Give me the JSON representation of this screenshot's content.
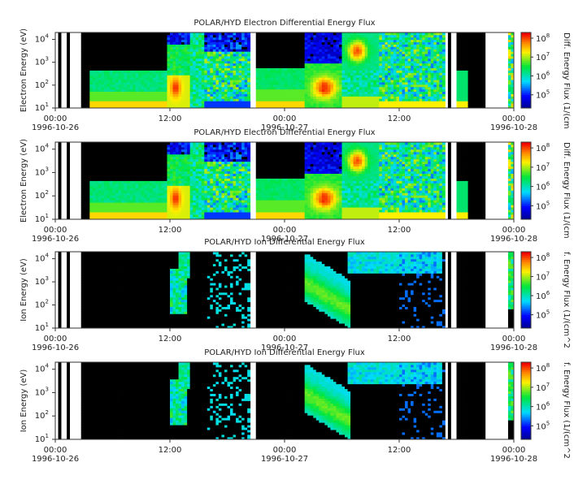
{
  "figure": {
    "panel_titles": [
      "POLAR/HYD  Electron Differential Energy Flux",
      "POLAR/HYD  Electron Differential Energy Flux",
      "POLAR/HYD  Ion Differential Energy Flux",
      "POLAR/HYD  Ion Differential Energy Flux"
    ],
    "ylabels": [
      "Electron Energy (eV)",
      "Electron Energy (eV)",
      "Ion Energy (eV)",
      "Ion Energy (eV)"
    ],
    "colorbar_labels": [
      "Diff. Energy Flux (1/(cm",
      "Diff. Energy Flux (1/(cm",
      "f. Energy Flux (1/(cm^2",
      "f. Energy Flux (1/(cm^2"
    ],
    "x_tick_times": [
      "00:00",
      "12:00",
      "00:00",
      "12:00",
      "00:00"
    ],
    "x_tick_dates": [
      "1996-10-26",
      "",
      "1996-10-27",
      "",
      "1996-10-28"
    ],
    "y_tick_labels": [
      "10",
      "10",
      "10",
      "10",
      "10"
    ],
    "y_tick_exponents": [
      "1",
      "2",
      "3",
      "4",
      ""
    ],
    "colorbar_tick_labels": [
      "10",
      "10",
      "10",
      "10"
    ],
    "colorbar_tick_exponents": [
      "5",
      "6",
      "7",
      "8"
    ]
  },
  "chart_data": [
    {
      "type": "heatmap",
      "title": "POLAR/HYD  Electron Differential Energy Flux",
      "ylabel": "Electron Energy (eV)",
      "colorbar_label": "Diff. Energy Flux (1/(cm",
      "x_range": [
        "1996-10-26T00:00",
        "1996-10-28T00:00"
      ],
      "y_range_eV": [
        10,
        20000
      ],
      "y_scale": "log",
      "color_range": [
        20000,
        200000000
      ],
      "color_scale": "log",
      "colormap": "rainbow (blue-green-yellow-red)",
      "data_gaps_hours": [
        [
          0.0,
          0.2
        ],
        [
          0.75,
          1.25
        ],
        [
          1.55,
          1.75
        ],
        [
          1.85,
          2.75
        ],
        [
          3.45,
          3.7
        ],
        [
          20.5,
          21.1
        ],
        [
          40.95,
          41.0
        ],
        [
          41.35,
          42.0
        ],
        [
          43.1,
          43.3
        ],
        [
          45.0,
          47.4
        ]
      ],
      "background": "black",
      "features": [
        {
          "x_hours": [
            3.8,
            20.5
          ],
          "feature": "flux band 20-500 eV",
          "level": "green"
        },
        {
          "x_hours": [
            12.2,
            13.1
          ],
          "feature": "enhanced flux 20-200 eV",
          "level": "red"
        },
        {
          "x_hours": [
            27.0,
            30.0
          ],
          "feature": "enhanced flux 30-300 eV",
          "level": "orange"
        },
        {
          "x_hours": [
            30.5,
            33.0
          ],
          "feature": "high-energy flux 1-10 keV",
          "level": "orange"
        }
      ]
    },
    {
      "type": "heatmap",
      "title": "POLAR/HYD  Electron Differential Energy Flux",
      "ylabel": "Electron Energy (eV)",
      "colorbar_label": "Diff. Energy Flux (1/(cm",
      "x_range": [
        "1996-10-26T00:00",
        "1996-10-28T00:00"
      ],
      "y_range_eV": [
        10,
        20000
      ],
      "y_scale": "log",
      "color_range": [
        20000,
        200000000
      ],
      "color_scale": "log",
      "colormap": "rainbow (blue-green-yellow-red)",
      "background": "black",
      "features": [
        {
          "x_hours": [
            3.8,
            20.5
          ],
          "feature": "flux band 20-500 eV",
          "level": "green"
        },
        {
          "x_hours": [
            12.2,
            13.1
          ],
          "feature": "enhanced flux 20-200 eV",
          "level": "red"
        },
        {
          "x_hours": [
            27.0,
            30.0
          ],
          "feature": "enhanced flux 30-300 eV",
          "level": "orange"
        },
        {
          "x_hours": [
            30.5,
            33.0
          ],
          "feature": "high-energy flux 1-10 keV",
          "level": "orange"
        }
      ]
    },
    {
      "type": "heatmap",
      "title": "POLAR/HYD  Ion Differential Energy Flux",
      "ylabel": "Ion Energy (eV)",
      "colorbar_label": "f. Energy Flux (1/(cm^2",
      "x_range": [
        "1996-10-26T00:00",
        "1996-10-28T00:00"
      ],
      "y_range_eV": [
        10,
        20000
      ],
      "y_scale": "log",
      "color_range": [
        20000,
        200000000
      ],
      "color_scale": "log",
      "colormap": "rainbow (blue-green-yellow-red)",
      "background": "black",
      "features": [
        {
          "x_hours": [
            12.0,
            13.6
          ],
          "feature": "ion flux 100 eV - 3 keV",
          "level": "green"
        },
        {
          "x_hours": [
            26.5,
            30.5
          ],
          "feature": "ion flux 50 eV - 10 keV",
          "level": "green"
        },
        {
          "x_hours": [
            46.5,
            48.0
          ],
          "feature": "ion flux 100 eV - 10 keV",
          "level": "green"
        }
      ]
    },
    {
      "type": "heatmap",
      "title": "POLAR/HYD  Ion Differential Energy Flux",
      "ylabel": "Ion Energy (eV)",
      "colorbar_label": "f. Energy Flux (1/(cm^2",
      "x_range": [
        "1996-10-26T00:00",
        "1996-10-28T00:00"
      ],
      "y_range_eV": [
        10,
        20000
      ],
      "y_scale": "log",
      "color_range": [
        20000,
        200000000
      ],
      "color_scale": "log",
      "colormap": "rainbow (blue-green-yellow-red)",
      "background": "black",
      "features": [
        {
          "x_hours": [
            12.0,
            13.6
          ],
          "feature": "ion flux 100 eV - 3 keV",
          "level": "green"
        },
        {
          "x_hours": [
            26.5,
            30.5
          ],
          "feature": "ion flux 50 eV - 10 keV",
          "level": "green"
        },
        {
          "x_hours": [
            46.5,
            48.0
          ],
          "feature": "ion flux 100 eV - 10 keV",
          "level": "green"
        }
      ]
    }
  ]
}
